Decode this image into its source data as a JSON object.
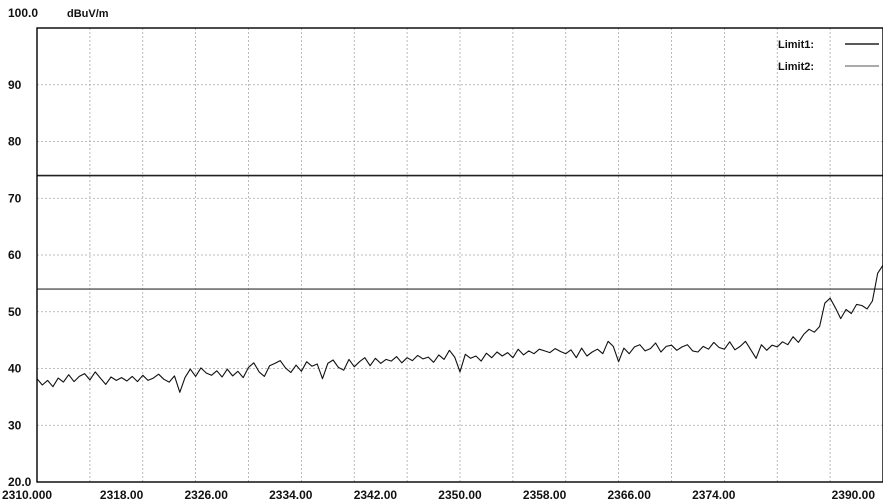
{
  "chart_data": {
    "type": "line",
    "title": "",
    "xlabel": "",
    "ylabel": "dBuV/m",
    "xlim": [
      2310.0,
      2390.0
    ],
    "ylim": [
      20.0,
      100.0
    ],
    "grid": true,
    "legend_position": "top-right",
    "y_ticks": [
      {
        "value": 100,
        "label": "100.0"
      },
      {
        "value": 90,
        "label": "90"
      },
      {
        "value": 80,
        "label": "80"
      },
      {
        "value": 70,
        "label": "70"
      },
      {
        "value": 60,
        "label": "60"
      },
      {
        "value": 50,
        "label": "50"
      },
      {
        "value": 40,
        "label": "40"
      },
      {
        "value": 30,
        "label": "30"
      },
      {
        "value": 20,
        "label": "20.0"
      }
    ],
    "x_ticks": [
      {
        "value": 2310,
        "label": "2310.000"
      },
      {
        "value": 2318,
        "label": "2318.00"
      },
      {
        "value": 2326,
        "label": "2326.00"
      },
      {
        "value": 2334,
        "label": "2334.00"
      },
      {
        "value": 2342,
        "label": "2342.00"
      },
      {
        "value": 2350,
        "label": "2350.00"
      },
      {
        "value": 2358,
        "label": "2358.00"
      },
      {
        "value": 2366,
        "label": "2366.00"
      },
      {
        "value": 2374,
        "label": "2374.00"
      },
      {
        "value": 2390,
        "label": "2390.00"
      }
    ],
    "limits": [
      {
        "name": "Limit1:",
        "value": 74,
        "color": "#222222",
        "style": "solid"
      },
      {
        "name": "Limit2:",
        "value": 54,
        "color": "#555555",
        "style": "solid"
      }
    ],
    "series": [
      {
        "color": "#111111",
        "x": [
          2310.0,
          2310.5,
          2311.0,
          2311.5,
          2312.0,
          2312.5,
          2313.0,
          2313.5,
          2314.0,
          2314.5,
          2315.0,
          2315.5,
          2316.0,
          2316.5,
          2317.0,
          2317.5,
          2318.0,
          2318.5,
          2319.0,
          2319.5,
          2320.0,
          2320.5,
          2321.0,
          2321.5,
          2322.0,
          2322.5,
          2323.0,
          2323.5,
          2324.0,
          2324.5,
          2325.0,
          2325.5,
          2326.0,
          2326.5,
          2327.0,
          2327.5,
          2328.0,
          2328.5,
          2329.0,
          2329.5,
          2330.0,
          2330.5,
          2331.0,
          2331.5,
          2332.0,
          2332.5,
          2333.0,
          2333.5,
          2334.0,
          2334.5,
          2335.0,
          2335.5,
          2336.0,
          2336.5,
          2337.0,
          2337.5,
          2338.0,
          2338.5,
          2339.0,
          2339.5,
          2340.0,
          2340.5,
          2341.0,
          2341.5,
          2342.0,
          2342.5,
          2343.0,
          2343.5,
          2344.0,
          2344.5,
          2345.0,
          2345.5,
          2346.0,
          2346.5,
          2347.0,
          2347.5,
          2348.0,
          2348.5,
          2349.0,
          2349.5,
          2350.0,
          2350.5,
          2351.0,
          2351.5,
          2352.0,
          2352.5,
          2353.0,
          2353.5,
          2354.0,
          2354.5,
          2355.0,
          2355.5,
          2356.0,
          2356.5,
          2357.0,
          2357.5,
          2358.0,
          2358.5,
          2359.0,
          2359.5,
          2360.0,
          2360.5,
          2361.0,
          2361.5,
          2362.0,
          2362.5,
          2363.0,
          2363.5,
          2364.0,
          2364.5,
          2365.0,
          2365.5,
          2366.0,
          2366.5,
          2367.0,
          2367.5,
          2368.0,
          2368.5,
          2369.0,
          2369.5,
          2370.0,
          2370.5,
          2371.0,
          2371.5,
          2372.0,
          2372.5,
          2373.0,
          2373.5,
          2374.0,
          2374.5,
          2375.0,
          2375.5,
          2376.0,
          2376.5,
          2377.0,
          2377.5,
          2378.0,
          2378.5,
          2379.0,
          2379.5,
          2380.0,
          2380.5,
          2381.0,
          2381.5,
          2382.0,
          2382.5,
          2383.0,
          2383.5,
          2384.0,
          2384.5,
          2385.0,
          2385.5,
          2386.0,
          2386.5,
          2387.0,
          2387.5,
          2388.0,
          2388.5,
          2389.0,
          2389.5,
          2390.0
        ],
        "values": [
          38.2,
          37.1,
          37.9,
          36.8,
          38.3,
          37.6,
          38.9,
          37.7,
          38.6,
          39.1,
          38.0,
          39.4,
          38.3,
          37.2,
          38.5,
          37.9,
          38.4,
          37.8,
          38.6,
          37.7,
          38.8,
          37.9,
          38.3,
          39.0,
          38.1,
          37.6,
          38.7,
          35.8,
          38.4,
          39.9,
          38.6,
          40.1,
          39.2,
          38.8,
          39.6,
          38.5,
          39.9,
          38.7,
          39.5,
          38.4,
          40.2,
          41.0,
          39.4,
          38.6,
          40.5,
          40.9,
          41.4,
          40.1,
          39.3,
          40.6,
          39.5,
          41.2,
          40.4,
          40.8,
          38.2,
          40.9,
          41.5,
          40.2,
          39.7,
          41.6,
          40.3,
          41.2,
          41.9,
          40.5,
          41.8,
          40.9,
          41.6,
          41.3,
          42.1,
          41.0,
          41.9,
          41.4,
          42.3,
          41.7,
          42.0,
          41.1,
          42.4,
          41.6,
          43.2,
          42.0,
          39.4,
          42.5,
          41.8,
          42.2,
          41.3,
          42.7,
          41.9,
          42.9,
          42.2,
          42.8,
          41.9,
          43.4,
          42.4,
          43.1,
          42.6,
          43.4,
          43.1,
          42.8,
          43.5,
          43.0,
          42.6,
          43.3,
          41.9,
          43.6,
          42.2,
          42.9,
          43.4,
          42.6,
          44.8,
          43.9,
          41.2,
          43.6,
          42.6,
          43.8,
          44.2,
          43.1,
          43.5,
          44.5,
          42.9,
          43.9,
          44.1,
          43.2,
          43.8,
          44.2,
          43.1,
          42.9,
          43.9,
          43.4,
          44.6,
          43.7,
          43.4,
          44.7,
          43.3,
          43.9,
          44.8,
          43.3,
          41.8,
          44.2,
          43.2,
          44.1,
          43.8,
          44.7,
          44.2,
          45.6,
          44.6,
          46.0,
          46.9,
          46.4,
          47.4,
          51.5,
          52.4,
          50.7,
          48.8,
          50.4,
          49.7,
          51.3,
          51.1,
          50.5,
          51.9,
          56.8,
          58.2
        ]
      }
    ]
  }
}
